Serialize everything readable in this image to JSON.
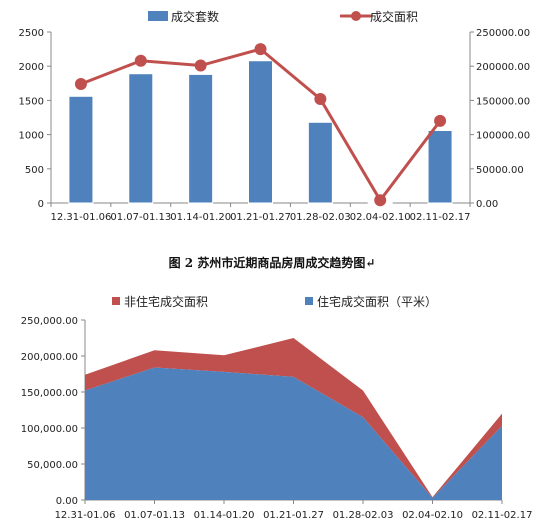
{
  "chart_data": [
    {
      "type": "bar+line",
      "categories": [
        "12.31-01.06",
        "01.07-01.13",
        "01.14-01.20",
        "01.21-01.27",
        "01.28-02.03",
        "02.04-02.10",
        "02.11-02.17"
      ],
      "series": [
        {
          "name": "成交套数",
          "type": "bar",
          "axis": "left",
          "color": "#4F81BD",
          "values": [
            1560,
            1890,
            1880,
            2080,
            1180,
            10,
            1060
          ]
        },
        {
          "name": "成交面积",
          "type": "line",
          "axis": "right",
          "color": "#C0504D",
          "values": [
            174000,
            208000,
            201000,
            225000,
            152000,
            4000,
            120000
          ]
        }
      ],
      "y_left": {
        "min": 0,
        "max": 2500,
        "ticks": [
          "0",
          "500",
          "1000",
          "1500",
          "2000",
          "2500"
        ]
      },
      "y_right": {
        "min": 0,
        "max": 250000,
        "ticks": [
          "0.00",
          "50000.00",
          "100000.00",
          "150000.00",
          "200000.00",
          "250000.00"
        ]
      },
      "legend_position": "top"
    },
    {
      "type": "area",
      "stacked": true,
      "categories": [
        "12.31-01.06",
        "01.07-01.13",
        "01.14-01.20",
        "01.21-01.27",
        "01.28-02.03",
        "02.04-02.10",
        "02.11-02.17"
      ],
      "series": [
        {
          "name": "住宅成交面积（平米）",
          "color": "#4F81BD",
          "values": [
            152000,
            184000,
            178000,
            171000,
            115000,
            3000,
            103000
          ]
        },
        {
          "name": "非住宅成交面积",
          "color": "#C0504D",
          "values": [
            22000,
            24000,
            23000,
            54000,
            37000,
            1000,
            17000
          ]
        }
      ],
      "y": {
        "min": 0,
        "max": 250000,
        "ticks": [
          "0.00",
          "50,000.00",
          "100,000.00",
          "150,000.00",
          "200,000.00",
          "250,000.00"
        ]
      },
      "legend_position": "top"
    }
  ],
  "caption": "图 2  苏州市近期商品房周成交趋势图↵"
}
